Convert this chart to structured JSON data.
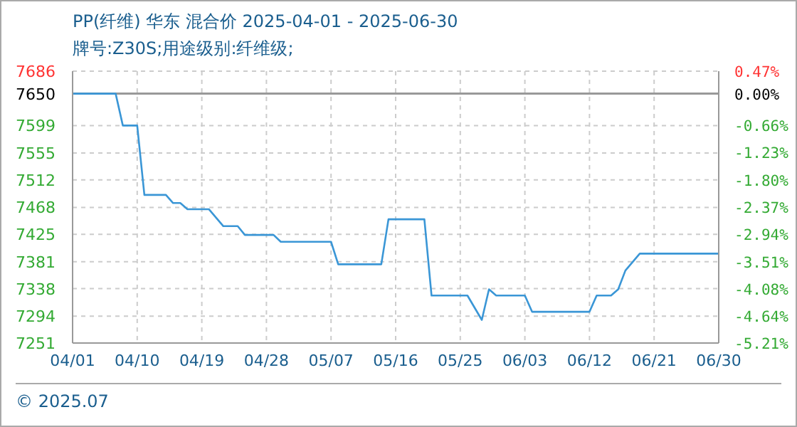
{
  "chart_data": {
    "type": "line",
    "title": "PP(纤维) 华东 混合价 2025-04-01 - 2025-06-30",
    "subtitle": "牌号:Z30S;用途级别:纤维级;",
    "x": [
      "2025-04-01",
      "2025-04-07",
      "2025-04-08",
      "2025-04-10",
      "2025-04-11",
      "2025-04-14",
      "2025-04-15",
      "2025-04-16",
      "2025-04-17",
      "2025-04-20",
      "2025-04-22",
      "2025-04-24",
      "2025-04-25",
      "2025-04-29",
      "2025-04-30",
      "2025-05-07",
      "2025-05-08",
      "2025-05-14",
      "2025-05-15",
      "2025-05-20",
      "2025-05-21",
      "2025-05-26",
      "2025-05-28",
      "2025-05-29",
      "2025-05-30",
      "2025-06-03",
      "2025-06-04",
      "2025-06-12",
      "2025-06-13",
      "2025-06-15",
      "2025-06-16",
      "2025-06-17",
      "2025-06-19",
      "2025-06-30"
    ],
    "series": [
      {
        "color": "#3a96d6",
        "values": [
          7650,
          7650,
          7599,
          7599,
          7488,
          7488,
          7475,
          7475,
          7465,
          7465,
          7438,
          7438,
          7424,
          7424,
          7413,
          7413,
          7377,
          7377,
          7449,
          7449,
          7327,
          7327,
          7288,
          7337,
          7327,
          7327,
          7301,
          7301,
          7327,
          7327,
          7337,
          7367,
          7394,
          7394
        ]
      }
    ],
    "xlim": [
      "2025-04-01",
      "2025-06-30"
    ],
    "xticks": [
      {
        "value": "2025-04-01",
        "label": "04/01"
      },
      {
        "value": "2025-04-10",
        "label": "04/10"
      },
      {
        "value": "2025-04-19",
        "label": "04/19"
      },
      {
        "value": "2025-04-28",
        "label": "04/28"
      },
      {
        "value": "2025-05-07",
        "label": "05/07"
      },
      {
        "value": "2025-05-16",
        "label": "05/16"
      },
      {
        "value": "2025-05-25",
        "label": "05/25"
      },
      {
        "value": "2025-06-03",
        "label": "06/03"
      },
      {
        "value": "2025-06-12",
        "label": "06/12"
      },
      {
        "value": "2025-06-21",
        "label": "06/21"
      },
      {
        "value": "2025-06-30",
        "label": "06/30"
      }
    ],
    "ylim": [
      7251,
      7686
    ],
    "yticks": [
      7251,
      7294,
      7338,
      7381,
      7425,
      7468,
      7512,
      7555,
      7599,
      7650,
      7686
    ],
    "y2lim": [
      -5.21,
      0.47
    ],
    "y2ticks": [
      {
        "value": -5.21,
        "label": "-5.21%"
      },
      {
        "value": -4.64,
        "label": "-4.64%"
      },
      {
        "value": -4.08,
        "label": "-4.08%"
      },
      {
        "value": -3.51,
        "label": "-3.51%"
      },
      {
        "value": -2.94,
        "label": "-2.94%"
      },
      {
        "value": -2.37,
        "label": "-2.37%"
      },
      {
        "value": -1.8,
        "label": "-1.80%"
      },
      {
        "value": -1.23,
        "label": "-1.23%"
      },
      {
        "value": -0.66,
        "label": "-0.66%"
      },
      {
        "value": 0,
        "label": "0.00%"
      },
      {
        "value": 0.47,
        "label": "0.47%"
      }
    ],
    "ref_lines": [
      {
        "axis": "y",
        "value": 7650,
        "color": "#999999"
      }
    ],
    "grid": true,
    "marker": "none",
    "line_style": "solid",
    "annotations": [
      "© 2025.07"
    ]
  }
}
